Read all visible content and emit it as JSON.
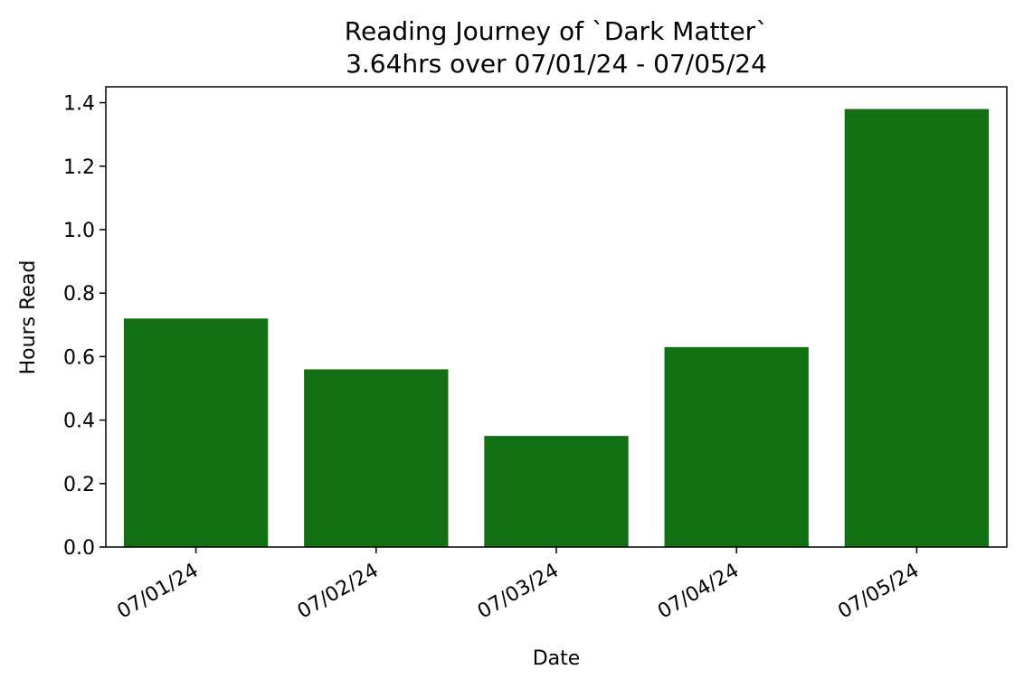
{
  "chart_data": {
    "type": "bar",
    "title": "Reading Journey of `Dark Matter`",
    "subtitle": "3.64hrs over 07/01/24 - 07/05/24",
    "xlabel": "Date",
    "ylabel": "Hours Read",
    "categories": [
      "07/01/24",
      "07/02/24",
      "07/03/24",
      "07/04/24",
      "07/05/24"
    ],
    "values": [
      0.72,
      0.56,
      0.35,
      0.63,
      1.38
    ],
    "ylim": [
      0,
      1.45
    ],
    "yticks": [
      0.0,
      0.2,
      0.4,
      0.6,
      0.8,
      1.0,
      1.2,
      1.4
    ],
    "ytick_labels": [
      "0.0",
      "0.2",
      "0.4",
      "0.6",
      "0.8",
      "1.0",
      "1.2",
      "1.4"
    ],
    "bar_color": "#117011",
    "grid": false,
    "legend": "none"
  }
}
